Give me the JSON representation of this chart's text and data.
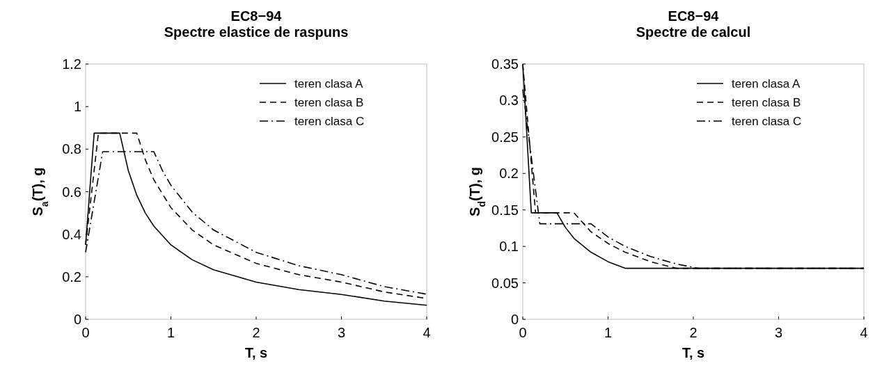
{
  "chart_data": [
    {
      "type": "line",
      "title": "EC8−94\nSpectre elastice de raspuns",
      "xlabel": "T, s",
      "ylabel": "S$_{a}$(T), g",
      "xlim": [
        0,
        4
      ],
      "xticks": [
        0,
        1,
        2,
        3,
        4
      ],
      "ylim": [
        0,
        1.2
      ],
      "yticks": [
        0,
        0.2,
        0.4,
        0.6,
        0.8,
        1,
        1.2
      ],
      "legend": "top right",
      "series": [
        {
          "name": "teren clasa A",
          "color": "#000000",
          "line_style": "solid",
          "x": [
            0,
            0.1,
            0.4,
            0.5,
            0.6,
            0.7,
            0.8,
            1,
            1.25,
            1.5,
            2,
            2.5,
            3,
            3.5,
            4
          ],
          "values": [
            0.35,
            0.875,
            0.875,
            0.7,
            0.583,
            0.5,
            0.438,
            0.35,
            0.28,
            0.233,
            0.175,
            0.14,
            0.117,
            0.086,
            0.066
          ]
        },
        {
          "name": "teren clasa B",
          "color": "#000000",
          "line_style": "dashed",
          "x": [
            0,
            0.15,
            0.6,
            0.7,
            0.8,
            1,
            1.25,
            1.5,
            2,
            2.5,
            3,
            3.5,
            4
          ],
          "values": [
            0.35,
            0.875,
            0.875,
            0.75,
            0.656,
            0.525,
            0.42,
            0.35,
            0.263,
            0.21,
            0.175,
            0.129,
            0.098
          ]
        },
        {
          "name": "teren clasa C",
          "color": "#000000",
          "line_style": "dashdot",
          "x": [
            0,
            0.2,
            0.8,
            0.9,
            1,
            1.25,
            1.5,
            2,
            2.5,
            3,
            3.5,
            4
          ],
          "values": [
            0.315,
            0.788,
            0.788,
            0.7,
            0.63,
            0.504,
            0.42,
            0.315,
            0.252,
            0.21,
            0.154,
            0.118
          ]
        }
      ]
    },
    {
      "type": "line",
      "title": "EC8−94\nSpectre de calcul",
      "xlabel": "T, s",
      "ylabel": "S$_{d}$(T), g",
      "xlim": [
        0,
        4
      ],
      "xticks": [
        0,
        1,
        2,
        3,
        4
      ],
      "ylim": [
        0,
        0.35
      ],
      "yticks": [
        0,
        0.05,
        0.1,
        0.15,
        0.2,
        0.25,
        0.3,
        0.35
      ],
      "legend": "top right",
      "series": [
        {
          "name": "teren clasa A",
          "color": "#000000",
          "line_style": "solid",
          "x": [
            0,
            0.1,
            0.4,
            0.5,
            0.6,
            0.8,
            1,
            1.2,
            4
          ],
          "values": [
            0.35,
            0.146,
            0.146,
            0.126,
            0.111,
            0.092,
            0.079,
            0.07,
            0.07
          ]
        },
        {
          "name": "teren clasa B",
          "color": "#000000",
          "line_style": "dashed",
          "x": [
            0,
            0.15,
            0.6,
            0.8,
            1,
            1.2,
            1.5,
            1.8,
            4
          ],
          "values": [
            0.35,
            0.146,
            0.146,
            0.12,
            0.104,
            0.092,
            0.079,
            0.07,
            0.07
          ]
        },
        {
          "name": "teren clasa C",
          "color": "#000000",
          "line_style": "dashdot",
          "x": [
            0,
            0.2,
            0.8,
            1,
            1.2,
            1.5,
            1.8,
            2.05,
            4
          ],
          "values": [
            0.315,
            0.131,
            0.131,
            0.113,
            0.1,
            0.086,
            0.076,
            0.07,
            0.07
          ]
        }
      ]
    }
  ]
}
